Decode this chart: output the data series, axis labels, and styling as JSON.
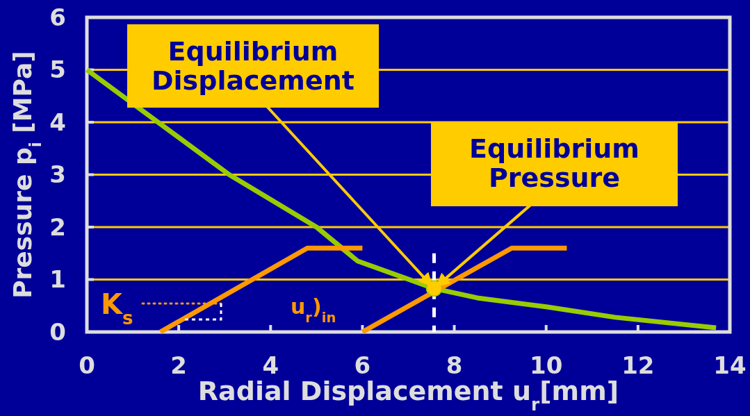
{
  "chart_data": {
    "type": "line",
    "xlabel": "Radial Displacement u$_{r}$[mm]",
    "ylabel": "Pressure p$_{i}$ [MPa]",
    "xlim": [
      0,
      14
    ],
    "xticks": [
      0,
      2,
      4,
      6,
      8,
      10,
      12,
      14
    ],
    "ylim": [
      0,
      6
    ],
    "yticks": [
      0,
      1,
      2,
      3,
      4,
      5,
      6
    ],
    "grid": "y",
    "marker": "none",
    "line_style": "solid",
    "series": [
      {
        "color": "#99cc00",
        "x": [
          0,
          3.1,
          5.0,
          5.9,
          7.56,
          8.5,
          10,
          11.5,
          13.7
        ],
        "values": [
          5,
          3.0,
          2.0,
          1.35,
          0.83,
          0.65,
          0.48,
          0.28,
          0.08
        ]
      },
      {
        "color": "#ff9900",
        "x": [
          1.6,
          4.8,
          6.0
        ],
        "values": [
          0,
          1.6,
          1.6
        ]
      },
      {
        "color": "#ff9900",
        "x": [
          6.0,
          9.25,
          10.45
        ],
        "values": [
          0,
          1.6,
          1.6
        ]
      },
      {
        "type": "scatter",
        "marker": "circle",
        "color": "#ffcc00",
        "x": [
          7.56
        ],
        "values": [
          0.83
        ]
      }
    ],
    "ref_lines": [
      {
        "axis": "x",
        "value": 7.56,
        "color": "#ffffff",
        "line_style": "dashed"
      }
    ],
    "annotations": [
      {
        "text": "Equilibrium Displacement",
        "x": 7.56,
        "y": 0.83
      },
      {
        "text": "Equilibrium Pressure",
        "x": 7.56,
        "y": 0.83
      },
      "K$_{s}$",
      "u$_{r}$)$_{in}$"
    ]
  }
}
